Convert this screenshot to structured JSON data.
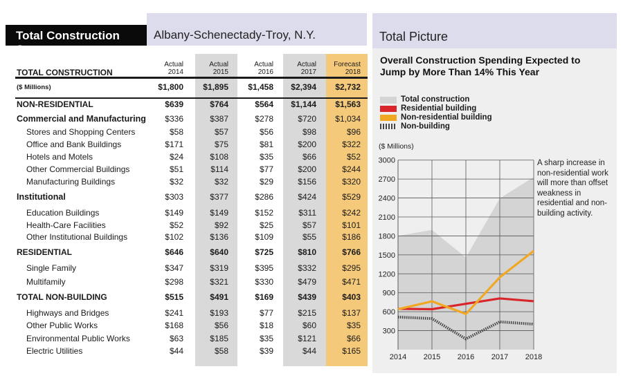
{
  "left_header": {
    "title": "Total Construction Starts",
    "location": "Albany-Schenectady-Troy, N.Y."
  },
  "table": {
    "columns": [
      {
        "label": "Actual",
        "year": "2014"
      },
      {
        "label": "Actual",
        "year": "2015"
      },
      {
        "label": "Actual",
        "year": "2016"
      },
      {
        "label": "Actual",
        "year": "2017"
      },
      {
        "label": "Forecast",
        "year": "2018"
      }
    ],
    "total_label": "TOTAL CONSTRUCTION",
    "rows": [
      {
        "label": "($ Millions)",
        "style": "small",
        "values": [
          "$1,800",
          "$1,895",
          "$1,458",
          "$2,394",
          "$2,732"
        ]
      },
      {
        "label": "NON-RESIDENTIAL",
        "style": "bold",
        "values": [
          "$639",
          "$764",
          "$564",
          "$1,144",
          "$1,563"
        ]
      },
      {
        "label": "Commercial and Manufacturing",
        "style": "major",
        "values": [
          "$336",
          "$387",
          "$278",
          "$720",
          "$1,034"
        ]
      },
      {
        "label": "Stores and Shopping Centers",
        "style": "sub",
        "values": [
          "$58",
          "$57",
          "$56",
          "$98",
          "$96"
        ]
      },
      {
        "label": "Office and Bank Buildings",
        "style": "sub",
        "values": [
          "$171",
          "$75",
          "$81",
          "$200",
          "$322"
        ]
      },
      {
        "label": "Hotels and Motels",
        "style": "sub",
        "values": [
          "$24",
          "$108",
          "$35",
          "$66",
          "$52"
        ]
      },
      {
        "label": "Other Commercial Buildings",
        "style": "sub",
        "values": [
          "$51",
          "$114",
          "$77",
          "$200",
          "$244"
        ]
      },
      {
        "label": "Manufacturing Buildings",
        "style": "sub",
        "values": [
          "$32",
          "$32",
          "$29",
          "$156",
          "$320"
        ]
      },
      {
        "label": "Institutional",
        "style": "major",
        "values": [
          "$303",
          "$377",
          "$286",
          "$424",
          "$529"
        ]
      },
      {
        "label": "Education Buildings",
        "style": "sub",
        "values": [
          "$149",
          "$149",
          "$152",
          "$311",
          "$242"
        ]
      },
      {
        "label": "Health-Care Facilities",
        "style": "sub",
        "values": [
          "$52",
          "$92",
          "$25",
          "$57",
          "$101"
        ]
      },
      {
        "label": "Other Institutional Buildings",
        "style": "sub",
        "values": [
          "$102",
          "$136",
          "$109",
          "$55",
          "$186"
        ]
      },
      {
        "label": "RESIDENTIAL",
        "style": "bold",
        "values": [
          "$646",
          "$640",
          "$725",
          "$810",
          "$766"
        ]
      },
      {
        "label": "Single Family",
        "style": "sub",
        "values": [
          "$347",
          "$319",
          "$395",
          "$332",
          "$295"
        ]
      },
      {
        "label": "Multifamily",
        "style": "sub",
        "values": [
          "$298",
          "$321",
          "$330",
          "$479",
          "$471"
        ]
      },
      {
        "label": "TOTAL NON-BUILDING",
        "style": "bold",
        "values": [
          "$515",
          "$491",
          "$169",
          "$439",
          "$403"
        ]
      },
      {
        "label": "Highways and Bridges",
        "style": "sub",
        "values": [
          "$241",
          "$193",
          "$77",
          "$215",
          "$137"
        ]
      },
      {
        "label": "Other Public Works",
        "style": "sub",
        "values": [
          "$168",
          "$56",
          "$18",
          "$60",
          "$35"
        ]
      },
      {
        "label": "Environmental Public Works",
        "style": "sub",
        "values": [
          "$63",
          "$185",
          "$35",
          "$121",
          "$66"
        ]
      },
      {
        "label": "Electric Utilities",
        "style": "sub",
        "values": [
          "$44",
          "$58",
          "$39",
          "$44",
          "$165"
        ]
      }
    ]
  },
  "right_header": {
    "title": "Total Picture"
  },
  "annotation": "A sharp increase in non-residential work will more than offset weakness in residential and non-building activity.",
  "chart_data": {
    "type": "line",
    "title": "Overall Construction Spending Expected to Jump by More Than 14% This Year",
    "ylabel": "($ Millions)",
    "x": [
      2014,
      2015,
      2016,
      2017,
      2018
    ],
    "yticks": [
      300,
      600,
      900,
      1200,
      1500,
      1800,
      2100,
      2400,
      2700,
      3000
    ],
    "ylim": [
      0,
      3150
    ],
    "grid": true,
    "legend_position": "top-left",
    "series": [
      {
        "name": "Total construction",
        "kind": "area",
        "color": "#d4d4d4",
        "values": [
          1800,
          1895,
          1458,
          2394,
          2732
        ]
      },
      {
        "name": "Residential building",
        "kind": "line",
        "color": "#d9252a",
        "values": [
          646,
          640,
          725,
          810,
          766
        ]
      },
      {
        "name": "Non-residential building",
        "kind": "line",
        "color": "#f0a823",
        "values": [
          639,
          764,
          564,
          1144,
          1563
        ]
      },
      {
        "name": "Non-building",
        "kind": "dashed",
        "color": "#444444",
        "values": [
          515,
          491,
          169,
          439,
          403
        ]
      }
    ]
  }
}
